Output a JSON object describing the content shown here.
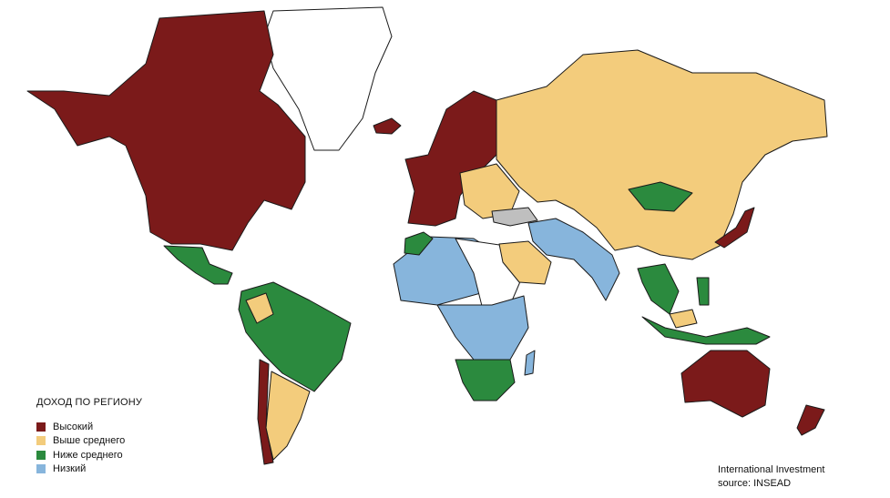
{
  "legend": {
    "title": "ДОХОД ПО РЕГИОНУ",
    "items": [
      {
        "label": "Высокий",
        "color": "#7b1a1a"
      },
      {
        "label": "Выше среднего",
        "color": "#f3cc7c"
      },
      {
        "label": "Ниже среднего",
        "color": "#2b8a3e"
      },
      {
        "label": "Низкий",
        "color": "#87b5dc"
      }
    ]
  },
  "no_data_color": "#ffffff",
  "unclassified_color": "#bfbfbf",
  "source": {
    "line1": "International Investment",
    "line2": "source: INSEAD"
  }
}
